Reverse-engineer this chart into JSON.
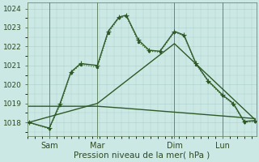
{
  "xlabel": "Pression niveau de la mer( hPa )",
  "background_color": "#cce8e4",
  "grid_color": "#aacfcb",
  "line_color": "#2d5a27",
  "xlim": [
    0,
    9.5
  ],
  "ylim": [
    1017.3,
    1024.3
  ],
  "yticks": [
    1018,
    1019,
    1020,
    1021,
    1022,
    1023,
    1024
  ],
  "xtick_labels": [
    "Sam",
    "Mar",
    "Dim",
    "Lun"
  ],
  "xtick_pos": [
    0.9,
    2.9,
    6.1,
    8.1
  ],
  "line_solid": {
    "x": [
      0.05,
      0.9,
      1.35,
      1.8,
      2.2,
      2.9,
      3.35,
      3.8,
      4.1,
      4.6,
      5.05,
      5.5,
      6.1,
      6.5,
      7.0,
      7.5,
      8.1,
      8.55,
      9.0,
      9.45
    ],
    "y": [
      1018.0,
      1017.7,
      1019.0,
      1020.65,
      1021.1,
      1021.0,
      1022.8,
      1023.55,
      1023.65,
      1022.35,
      1021.8,
      1021.75,
      1022.8,
      1022.6,
      1021.1,
      1020.2,
      1019.45,
      1019.0,
      1018.05,
      1018.1
    ]
  },
  "line_dotted": {
    "x": [
      0.05,
      0.9,
      1.35,
      1.8,
      2.2,
      2.9,
      3.35,
      3.8,
      4.1,
      4.6,
      5.05,
      5.5,
      6.1,
      6.5,
      7.0,
      7.5,
      8.1,
      8.55,
      9.0,
      9.45
    ],
    "y": [
      1018.0,
      1017.65,
      1018.9,
      1020.6,
      1021.05,
      1020.9,
      1022.7,
      1023.5,
      1023.6,
      1022.25,
      1021.75,
      1021.7,
      1022.75,
      1022.55,
      1021.05,
      1020.15,
      1019.4,
      1018.95,
      1018.0,
      1018.05
    ]
  },
  "line_flat": {
    "x": [
      0.05,
      2.9,
      4.0,
      5.0,
      6.0,
      7.0,
      8.0,
      9.45
    ],
    "y": [
      1018.85,
      1018.85,
      1018.75,
      1018.65,
      1018.55,
      1018.45,
      1018.35,
      1018.2
    ]
  },
  "line_diag": {
    "x": [
      0.05,
      2.9,
      6.1,
      9.45
    ],
    "y": [
      1018.0,
      1019.0,
      1022.15,
      1018.15
    ]
  }
}
